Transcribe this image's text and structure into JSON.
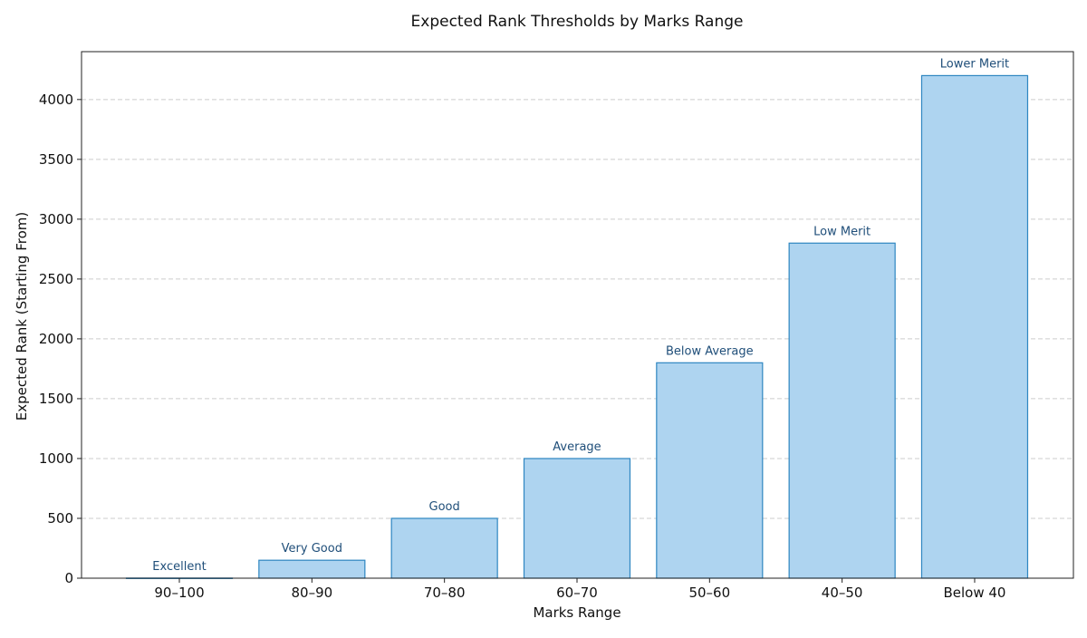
{
  "chart_data": {
    "type": "bar",
    "title": "Expected Rank Thresholds by Marks Range",
    "xlabel": "Marks Range",
    "ylabel": "Expected Rank (Starting From)",
    "categories": [
      "90–100",
      "80–90",
      "70–80",
      "60–70",
      "50–60",
      "40–50",
      "Below 40"
    ],
    "values": [
      1,
      150,
      500,
      1000,
      1800,
      2800,
      4200
    ],
    "bar_labels": [
      "Excellent",
      "Very Good",
      "Good",
      "Average",
      "Below Average",
      "Low Merit",
      "Lower Merit"
    ],
    "ylim": [
      0,
      4400
    ],
    "yticks": [
      0,
      500,
      1000,
      1500,
      2000,
      2500,
      3000,
      3500,
      4000
    ],
    "grid": "y-dashed",
    "colors": {
      "bar_fill": "#aed4f0",
      "bar_edge": "#2e86c1",
      "label_text": "#1f4e79"
    }
  }
}
